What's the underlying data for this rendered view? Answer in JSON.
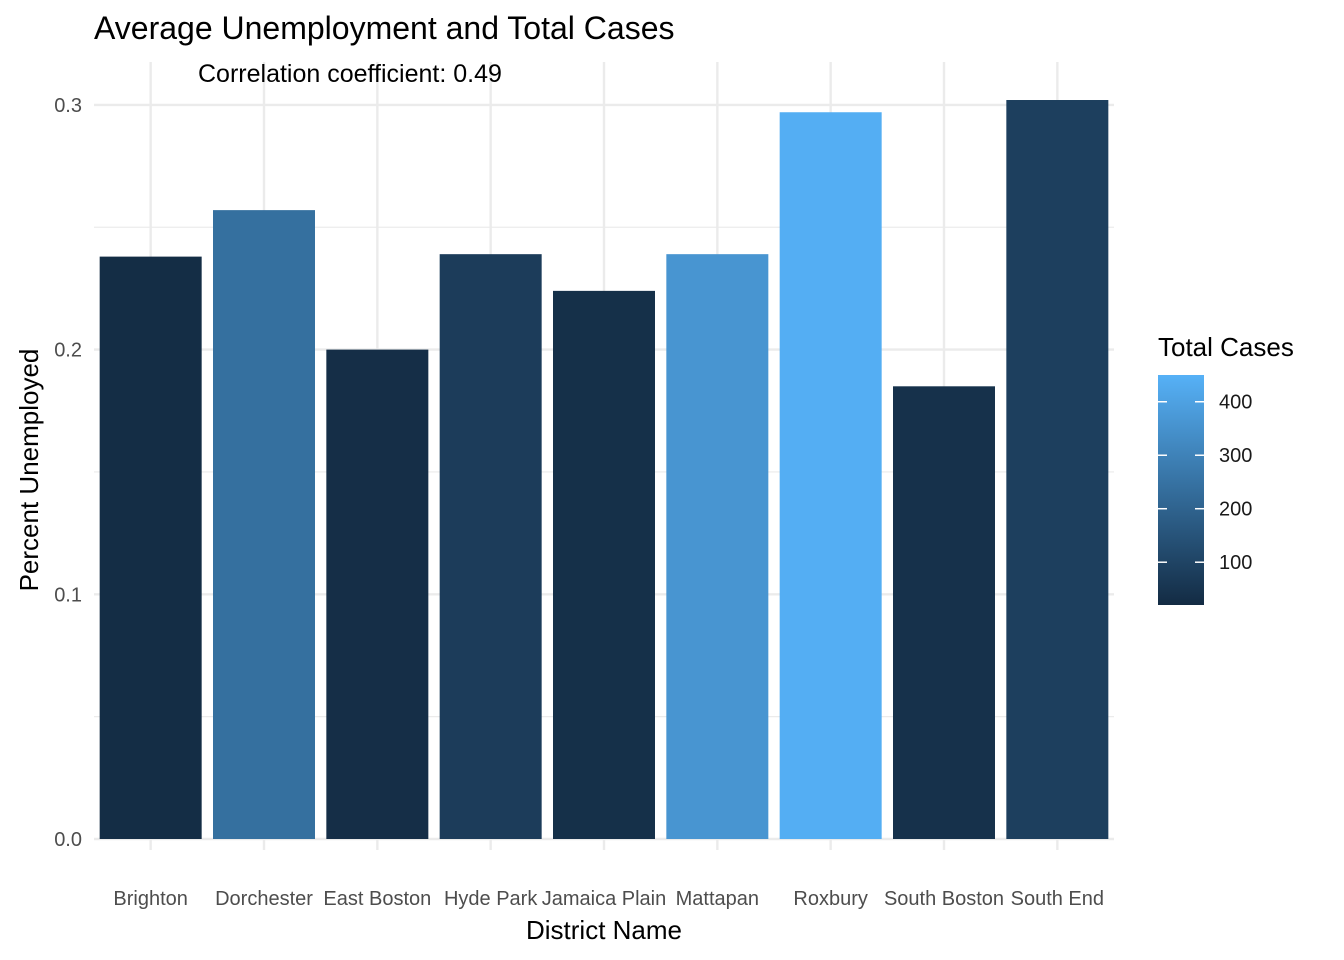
{
  "chart_data": {
    "type": "bar",
    "title": "Average Unemployment and Total Cases",
    "annotation": "Correlation coefficient:  0.49",
    "xlabel": "District Name",
    "ylabel": "Percent Unemployed",
    "categories": [
      "Brighton",
      "Dorchester",
      "East Boston",
      "Hyde Park",
      "Jamaica Plain",
      "Mattapan",
      "Roxbury",
      "South Boston",
      "South End"
    ],
    "values": [
      0.238,
      0.257,
      0.2,
      0.239,
      0.224,
      0.239,
      0.297,
      0.185,
      0.302
    ],
    "total_cases": [
      25,
      240,
      30,
      75,
      35,
      360,
      440,
      40,
      85
    ],
    "ylim": [
      0,
      0.31
    ],
    "yticks": [
      0.0,
      0.1,
      0.2,
      0.3
    ],
    "ytick_labels": [
      "0.0",
      "0.1",
      "0.2",
      "0.3"
    ],
    "grid": true,
    "legend": {
      "title": "Total Cases",
      "position": "right",
      "range": [
        20,
        450
      ],
      "ticks": [
        100,
        200,
        300,
        400
      ],
      "tick_labels": [
        "100",
        "200",
        "300",
        "400"
      ],
      "color_low": "#132B43",
      "color_high": "#56B1F7"
    }
  }
}
